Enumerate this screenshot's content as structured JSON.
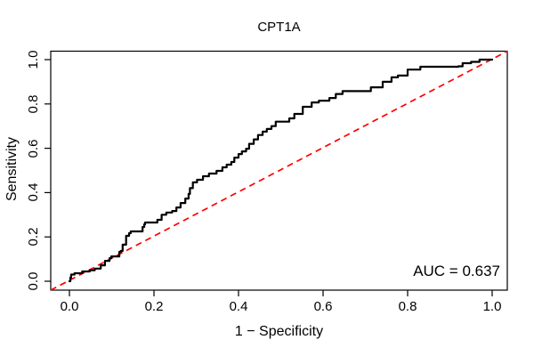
{
  "figure": {
    "background": "#ffffff",
    "frame_color": "#000000"
  },
  "chart_data": {
    "type": "line",
    "title": "CPT1A",
    "xlabel": "1 − Specificity",
    "ylabel": "Sensitivity",
    "xlim": [
      0,
      1
    ],
    "ylim": [
      0,
      1
    ],
    "grid": false,
    "x_tick_labels": [
      "0.0",
      "0.2",
      "0.4",
      "0.6",
      "0.8",
      "1.0"
    ],
    "x_tick_values": [
      0,
      0.2,
      0.4,
      0.6,
      0.8,
      1.0
    ],
    "y_tick_labels": [
      "0.0",
      "0.2",
      "0.4",
      "0.6",
      "0.8",
      "1.0"
    ],
    "y_tick_values": [
      0,
      0.2,
      0.4,
      0.6,
      0.8,
      1.0
    ],
    "annotation": {
      "auc_label": "AUC = 0.637",
      "auc_value": 0.637,
      "position": "bottom-right"
    },
    "series": [
      {
        "name": "ROC curve",
        "color": "#000000",
        "line_style": "solid",
        "line_width": 2.2,
        "step": true,
        "points": [
          [
            0,
            0
          ],
          [
            0.002,
            0.016
          ],
          [
            0.004,
            0.03
          ],
          [
            0.01,
            0.03
          ],
          [
            0.012,
            0.036
          ],
          [
            0.028,
            0.036
          ],
          [
            0.03,
            0.044
          ],
          [
            0.046,
            0.044
          ],
          [
            0.048,
            0.05
          ],
          [
            0.06,
            0.057
          ],
          [
            0.074,
            0.072
          ],
          [
            0.084,
            0.092
          ],
          [
            0.095,
            0.104
          ],
          [
            0.099,
            0.112
          ],
          [
            0.116,
            0.112
          ],
          [
            0.118,
            0.133
          ],
          [
            0.122,
            0.137
          ],
          [
            0.126,
            0.165
          ],
          [
            0.134,
            0.205
          ],
          [
            0.141,
            0.217
          ],
          [
            0.145,
            0.225
          ],
          [
            0.168,
            0.225
          ],
          [
            0.173,
            0.245
          ],
          [
            0.177,
            0.257
          ],
          [
            0.179,
            0.265
          ],
          [
            0.194,
            0.265
          ],
          [
            0.208,
            0.277
          ],
          [
            0.218,
            0.3
          ],
          [
            0.229,
            0.31
          ],
          [
            0.243,
            0.317
          ],
          [
            0.253,
            0.333
          ],
          [
            0.263,
            0.353
          ],
          [
            0.274,
            0.373
          ],
          [
            0.282,
            0.394
          ],
          [
            0.285,
            0.42
          ],
          [
            0.292,
            0.446
          ],
          [
            0.302,
            0.458
          ],
          [
            0.316,
            0.474
          ],
          [
            0.33,
            0.486
          ],
          [
            0.348,
            0.498
          ],
          [
            0.362,
            0.514
          ],
          [
            0.372,
            0.526
          ],
          [
            0.383,
            0.538
          ],
          [
            0.39,
            0.558
          ],
          [
            0.4,
            0.574
          ],
          [
            0.408,
            0.586
          ],
          [
            0.418,
            0.598
          ],
          [
            0.425,
            0.62
          ],
          [
            0.436,
            0.64
          ],
          [
            0.446,
            0.66
          ],
          [
            0.457,
            0.675
          ],
          [
            0.467,
            0.687
          ],
          [
            0.478,
            0.7
          ],
          [
            0.488,
            0.72
          ],
          [
            0.51,
            0.72
          ],
          [
            0.52,
            0.735
          ],
          [
            0.532,
            0.755
          ],
          [
            0.552,
            0.787
          ],
          [
            0.573,
            0.807
          ],
          [
            0.59,
            0.815
          ],
          [
            0.604,
            0.815
          ],
          [
            0.615,
            0.827
          ],
          [
            0.63,
            0.845
          ],
          [
            0.646,
            0.858
          ],
          [
            0.709,
            0.858
          ],
          [
            0.713,
            0.875
          ],
          [
            0.741,
            0.9
          ],
          [
            0.762,
            0.92
          ],
          [
            0.777,
            0.928
          ],
          [
            0.8,
            0.955
          ],
          [
            0.83,
            0.968
          ],
          [
            0.92,
            0.97
          ],
          [
            0.93,
            0.984
          ],
          [
            0.95,
            0.99
          ],
          [
            0.97,
            1
          ],
          [
            1,
            1
          ]
        ]
      },
      {
        "name": "chance diagonal",
        "color": "#FF0000",
        "line_style": "dashed",
        "line_width": 1.7,
        "step": false,
        "points": [
          [
            0,
            0
          ],
          [
            1,
            1
          ]
        ]
      }
    ]
  }
}
